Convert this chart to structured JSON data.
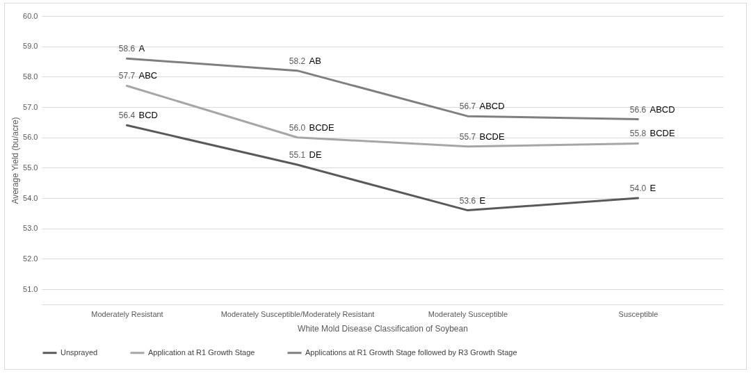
{
  "chart_data": {
    "type": "line",
    "xlabel": "White Mold Disease Classification of Soybean",
    "ylabel": "Average Yield (bu/acre)",
    "categories": [
      "Moderately Resistant",
      "Moderately Susceptible/Moderately Resistant",
      "Moderately Susceptible",
      "Susceptible"
    ],
    "series": [
      {
        "name": "Unsprayed",
        "color": "#595959",
        "values": [
          56.4,
          55.1,
          53.6,
          54.0
        ],
        "value_labels": [
          "56.4",
          "55.1",
          "53.6",
          "54.0"
        ]
      },
      {
        "name": "Application at R1 Growth Stage",
        "color": "#a6a6a6",
        "values": [
          57.7,
          56.0,
          55.7,
          55.8
        ],
        "value_labels": [
          "57.7",
          "56.0",
          "55.7",
          "55.8"
        ]
      },
      {
        "name": "Applications at R1 Growth Stage followed by R3 Growth Stage",
        "color": "#7f7f7f",
        "values": [
          58.6,
          58.2,
          56.7,
          56.6
        ],
        "value_labels": [
          "58.6",
          "58.2",
          "56.7",
          "56.6"
        ]
      }
    ],
    "ylim": [
      50.5,
      60
    ],
    "yticks": [
      {
        "value": 51,
        "label": "51.0"
      },
      {
        "value": 52,
        "label": "52.0"
      },
      {
        "value": 53,
        "label": "53.0"
      },
      {
        "value": 54,
        "label": "54.0"
      },
      {
        "value": 55,
        "label": "55.0"
      },
      {
        "value": 56,
        "label": "56.0"
      },
      {
        "value": 57,
        "label": "57.0"
      },
      {
        "value": 58,
        "label": "58.0"
      },
      {
        "value": 59,
        "label": "59.0"
      },
      {
        "value": 60,
        "label": "60.0"
      }
    ],
    "grid": "y",
    "legend": "bottom",
    "marker": "none",
    "line_style": "solid",
    "annotations": [
      {
        "text": "A",
        "x": "Moderately Resistant",
        "y": 58.6
      },
      {
        "text": "ABC",
        "x": "Moderately Resistant",
        "y": 57.7
      },
      {
        "text": "BCD",
        "x": "Moderately Resistant",
        "y": 56.4
      },
      {
        "text": "AB",
        "x": "Moderately Susceptible/Moderately Resistant",
        "y": 58.2
      },
      {
        "text": "BCDE",
        "x": "Moderately Susceptible/Moderately Resistant",
        "y": 56.0
      },
      {
        "text": "DE",
        "x": "Moderately Susceptible/Moderately Resistant",
        "y": 55.1
      },
      {
        "text": "ABCD",
        "x": "Moderately Susceptible",
        "y": 56.7
      },
      {
        "text": "BCDE",
        "x": "Moderately Susceptible",
        "y": 55.7
      },
      {
        "text": "E",
        "x": "Moderately Susceptible",
        "y": 53.6
      },
      {
        "text": "ABCD",
        "x": "Susceptible",
        "y": 56.6
      },
      {
        "text": "BCDE",
        "x": "Susceptible",
        "y": 55.8
      },
      {
        "text": "E",
        "x": "Susceptible",
        "y": 54.0
      }
    ]
  }
}
